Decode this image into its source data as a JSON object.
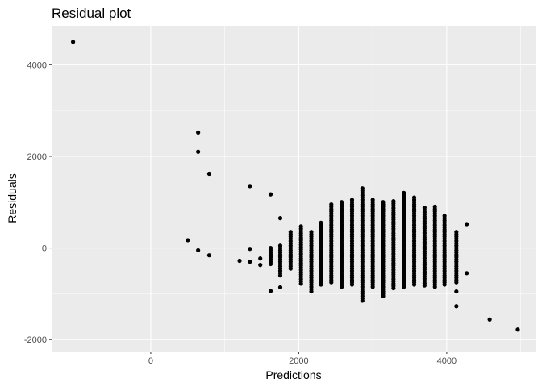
{
  "chart_data": {
    "type": "scatter",
    "title": "Residual plot",
    "xlabel": "Predictions",
    "ylabel": "Residuals",
    "xlim": [
      -1340,
      5200
    ],
    "ylim": [
      -2260,
      4850
    ],
    "x_ticks": [
      0,
      2000,
      4000
    ],
    "y_ticks": [
      -2000,
      0,
      2000,
      4000
    ],
    "grid": true,
    "colors": {
      "panel": "#EBEBEB",
      "grid_major": "#FFFFFF",
      "point": "#000000",
      "tick": "#333333"
    },
    "outliers": [
      {
        "x": -1050,
        "y": 4500
      },
      {
        "x": 640,
        "y": 2520
      },
      {
        "x": 640,
        "y": 2100
      },
      {
        "x": 790,
        "y": 1620
      },
      {
        "x": 1340,
        "y": 1350
      },
      {
        "x": 1620,
        "y": 1170
      },
      {
        "x": 500,
        "y": 170
      },
      {
        "x": 640,
        "y": -50
      },
      {
        "x": 790,
        "y": -160
      },
      {
        "x": 1200,
        "y": -280
      },
      {
        "x": 1340,
        "y": -20
      },
      {
        "x": 1340,
        "y": -300
      },
      {
        "x": 1480,
        "y": -230
      },
      {
        "x": 1480,
        "y": -370
      },
      {
        "x": 1620,
        "y": -150
      },
      {
        "x": 1620,
        "y": -940
      },
      {
        "x": 1750,
        "y": 650
      },
      {
        "x": 1750,
        "y": -860
      },
      {
        "x": 4130,
        "y": -1270
      },
      {
        "x": 4130,
        "y": -950
      },
      {
        "x": 4270,
        "y": 520
      },
      {
        "x": 4270,
        "y": -550
      },
      {
        "x": 4580,
        "y": -1560
      },
      {
        "x": 4960,
        "y": -1780
      }
    ],
    "columns": [
      {
        "x": 1620,
        "ymin": -350,
        "ymax": 30
      },
      {
        "x": 1750,
        "ymin": -600,
        "ymax": 50
      },
      {
        "x": 1890,
        "ymin": -450,
        "ymax": 380
      },
      {
        "x": 2030,
        "ymin": -780,
        "ymax": 500
      },
      {
        "x": 2170,
        "ymin": -950,
        "ymax": 350
      },
      {
        "x": 2300,
        "ymin": -800,
        "ymax": 560
      },
      {
        "x": 2440,
        "ymin": -750,
        "ymax": 950
      },
      {
        "x": 2580,
        "ymin": -850,
        "ymax": 1000
      },
      {
        "x": 2720,
        "ymin": -800,
        "ymax": 1070
      },
      {
        "x": 2860,
        "ymin": -1150,
        "ymax": 1320
      },
      {
        "x": 3000,
        "ymin": -850,
        "ymax": 1060
      },
      {
        "x": 3140,
        "ymin": -1050,
        "ymax": 1000
      },
      {
        "x": 3280,
        "ymin": -880,
        "ymax": 1020
      },
      {
        "x": 3420,
        "ymin": -850,
        "ymax": 1220
      },
      {
        "x": 3560,
        "ymin": -800,
        "ymax": 1130
      },
      {
        "x": 3700,
        "ymin": -820,
        "ymax": 880
      },
      {
        "x": 3840,
        "ymin": -850,
        "ymax": 920
      },
      {
        "x": 3970,
        "ymin": -800,
        "ymax": 700
      },
      {
        "x": 4130,
        "ymin": -750,
        "ymax": 350
      }
    ]
  }
}
